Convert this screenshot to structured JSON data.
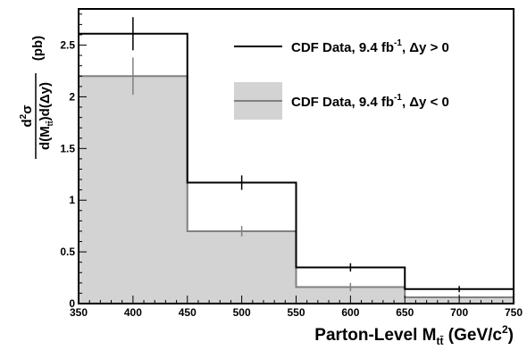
{
  "chart_data": {
    "type": "bar",
    "xlabel": "Parton-Level M",
    "xlabel_sub": "tt̄",
    "xlabel_units": "(GeV/c",
    "xlabel_units_sup": "2",
    "xlabel_units_end": ")",
    "ylabel": {
      "numerator": "d",
      "numerator_sup": "2",
      "numerator_sym": "σ",
      "denominator": "d(M",
      "denominator_sub": "tt̄",
      "denominator_end": ")d(Δy)",
      "units": "(pb)"
    },
    "xlim": [
      350,
      750
    ],
    "ylim": [
      0,
      2.85
    ],
    "x_ticks": [
      "350",
      "400",
      "450",
      "500",
      "550",
      "600",
      "650",
      "700",
      "750"
    ],
    "y_ticks": [
      "0",
      "0.5",
      "1",
      "1.5",
      "2",
      "2.5"
    ],
    "bin_edges": [
      350,
      450,
      550,
      650,
      750
    ],
    "bin_centers": [
      400,
      500,
      600,
      700
    ],
    "series": [
      {
        "name": "CDF Data, 9.4 fb",
        "name_sup": "-1",
        "name_end": ", Δy > 0",
        "style": "step-black",
        "color": "#000000",
        "values": [
          2.61,
          1.17,
          0.35,
          0.14
        ],
        "errors": [
          0.16,
          0.07,
          0.04,
          0.03
        ]
      },
      {
        "name": "CDF Data, 9.4 fb",
        "name_sup": "-1",
        "name_end": ", Δy < 0",
        "style": "filled-gray",
        "color": "#808080",
        "fill": "#d3d3d3",
        "values": [
          2.2,
          0.7,
          0.16,
          0.06
        ],
        "errors": [
          0.18,
          0.05,
          0.04,
          0.03
        ]
      }
    ],
    "legend_position": "top-right"
  }
}
